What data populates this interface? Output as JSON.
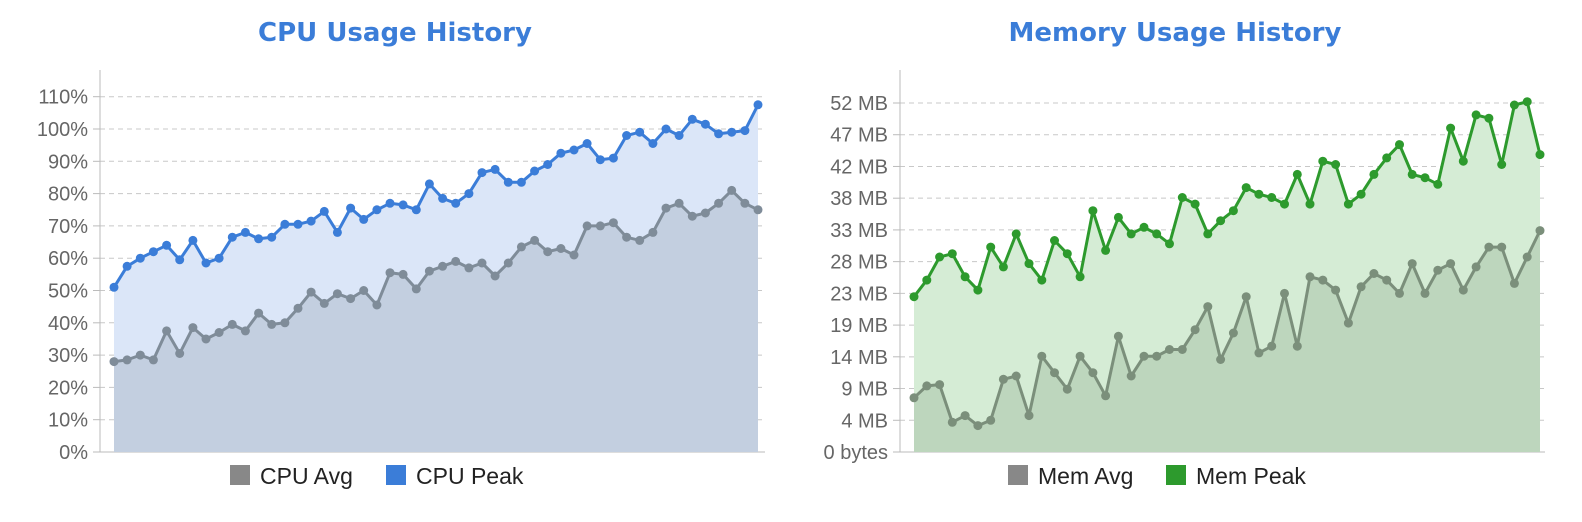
{
  "colors": {
    "title": "#3b7dd8",
    "cpu_avg": "#7f8c99",
    "cpu_peak": "#3b7dd8",
    "cpu_peak_fill": "#dbe6f8",
    "cpu_avg_fill": "#c3cfe0",
    "mem_avg": "#7b8f7b",
    "mem_peak": "#2d9a2d",
    "mem_peak_fill": "#d5ecd5",
    "mem_avg_fill": "#bdd6bd",
    "legend_avg": "#888888",
    "grid": "#c8c8c8",
    "axis": "#bbbbbb"
  },
  "chart_data": [
    {
      "type": "area",
      "title": "CPU Usage History",
      "xlabel": "",
      "ylabel": "",
      "ylim": [
        0,
        1.1
      ],
      "yticks": [
        0,
        0.1,
        0.2,
        0.3,
        0.4,
        0.5,
        0.6,
        0.7,
        0.8,
        0.9,
        1.0,
        1.1
      ],
      "ytick_labels": [
        "0%",
        "10%",
        "20%",
        "30%",
        "40%",
        "50%",
        "60%",
        "70%",
        "80%",
        "90%",
        "100%",
        "110%"
      ],
      "grid": true,
      "legend_position": "bottom",
      "series": [
        {
          "name": "CPU Avg",
          "values": [
            0.28,
            0.285,
            0.3,
            0.285,
            0.375,
            0.305,
            0.385,
            0.35,
            0.37,
            0.395,
            0.375,
            0.43,
            0.395,
            0.4,
            0.445,
            0.495,
            0.46,
            0.49,
            0.475,
            0.5,
            0.455,
            0.555,
            0.55,
            0.505,
            0.56,
            0.575,
            0.59,
            0.57,
            0.585,
            0.545,
            0.585,
            0.635,
            0.655,
            0.62,
            0.63,
            0.61,
            0.7,
            0.7,
            0.71,
            0.665,
            0.655,
            0.68,
            0.755,
            0.77,
            0.73,
            0.74,
            0.77,
            0.81,
            0.77,
            0.75
          ]
        },
        {
          "name": "CPU Peak",
          "values": [
            0.51,
            0.575,
            0.6,
            0.62,
            0.64,
            0.595,
            0.655,
            0.585,
            0.6,
            0.665,
            0.68,
            0.66,
            0.665,
            0.705,
            0.705,
            0.715,
            0.745,
            0.68,
            0.755,
            0.72,
            0.75,
            0.77,
            0.765,
            0.75,
            0.83,
            0.785,
            0.77,
            0.8,
            0.865,
            0.875,
            0.835,
            0.835,
            0.87,
            0.89,
            0.925,
            0.935,
            0.955,
            0.905,
            0.91,
            0.98,
            0.99,
            0.955,
            1.0,
            0.98,
            1.03,
            1.015,
            0.985,
            0.99,
            0.995,
            1.075
          ]
        }
      ]
    },
    {
      "type": "area",
      "title": "Memory Usage History",
      "xlabel": "",
      "ylabel": "",
      "ylim": [
        0,
        54
      ],
      "yticks": [
        0,
        4.8,
        9.6,
        14.4,
        19.2,
        24,
        28.8,
        33.6,
        38.4,
        43.2,
        48,
        52.8
      ],
      "ytick_labels": [
        "0 bytes",
        "4 MB",
        "9 MB",
        "14 MB",
        "19 MB",
        "23 MB",
        "28 MB",
        "33 MB",
        "38 MB",
        "42 MB",
        "47 MB",
        "52 MB"
      ],
      "grid": true,
      "legend_position": "bottom",
      "series": [
        {
          "name": "Mem Avg",
          "values": [
            8.2,
            10.0,
            10.2,
            4.5,
            5.5,
            4.0,
            4.8,
            11.0,
            11.5,
            5.5,
            14.5,
            12.0,
            9.5,
            14.5,
            12.0,
            8.5,
            17.5,
            11.5,
            14.5,
            14.5,
            15.5,
            15.5,
            18.5,
            22.0,
            14.0,
            18.0,
            23.5,
            15.0,
            16.0,
            24.0,
            16.0,
            26.5,
            26.0,
            24.5,
            19.5,
            25.0,
            27.0,
            26.0,
            24.0,
            28.5,
            24.0,
            27.5,
            28.5,
            24.5,
            28.0,
            31.0,
            31.0,
            25.5,
            29.5,
            33.5
          ]
        },
        {
          "name": "Mem Peak",
          "values": [
            23.5,
            26.0,
            29.5,
            30.0,
            26.5,
            24.5,
            31.0,
            28.0,
            33.0,
            28.5,
            26.0,
            32.0,
            30.0,
            26.5,
            36.5,
            30.5,
            35.5,
            33.0,
            34.0,
            33.0,
            31.5,
            38.5,
            37.5,
            33.0,
            35.0,
            36.5,
            40.0,
            39.0,
            38.5,
            37.5,
            42.0,
            37.5,
            44.0,
            43.5,
            37.5,
            39.0,
            42.0,
            44.5,
            46.5,
            42.0,
            41.5,
            40.5,
            49.0,
            44.0,
            51.0,
            50.5,
            43.5,
            52.5,
            53.0,
            45.0
          ]
        }
      ]
    }
  ]
}
